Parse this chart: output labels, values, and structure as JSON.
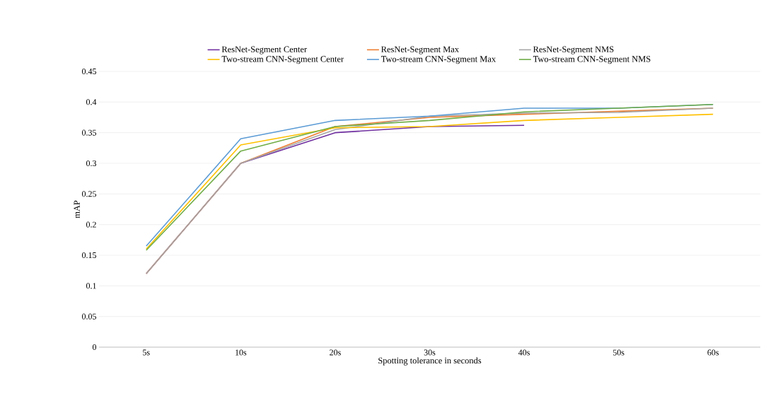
{
  "chart_data": {
    "type": "line",
    "xlabel": "Spotting tolerance in seconds",
    "ylabel": "mAP",
    "categories": [
      "5s",
      "10s",
      "20s",
      "30s",
      "40s",
      "50s",
      "60s"
    ],
    "series": [
      {
        "name": "ResNet-Segment Center",
        "color": "#7030a0",
        "values": [
          0.12,
          0.3,
          0.35,
          0.36,
          0.362,
          null,
          null
        ]
      },
      {
        "name": "ResNet-Segment Max",
        "color": "#ed7d31",
        "values": [
          0.12,
          0.3,
          0.36,
          0.375,
          0.38,
          0.385,
          0.39
        ]
      },
      {
        "name": "ResNet-Segment NMS",
        "color": "#a5a5a5",
        "values": [
          0.12,
          0.3,
          0.355,
          0.377,
          0.382,
          0.383,
          0.39
        ]
      },
      {
        "name": "Two-stream CNN-Segment Center",
        "color": "#ffc000",
        "values": [
          0.16,
          0.33,
          0.358,
          0.36,
          0.37,
          0.375,
          0.38
        ]
      },
      {
        "name": "Two-stream CNN-Segment Max",
        "color": "#5b9bd5",
        "values": [
          0.165,
          0.34,
          0.37,
          0.377,
          0.39,
          0.39,
          0.396
        ]
      },
      {
        "name": "Two-stream CNN-Segment NMS",
        "color": "#70ad47",
        "values": [
          0.158,
          0.32,
          0.36,
          0.37,
          0.384,
          0.39,
          0.396
        ]
      }
    ],
    "ylim": [
      0,
      0.45
    ],
    "yticks": [
      0,
      0.05,
      0.1,
      0.15,
      0.2,
      0.25,
      0.3,
      0.35,
      0.4,
      0.45
    ],
    "grid": "y",
    "legend": "top",
    "marker": "none",
    "line_style": "solid"
  }
}
